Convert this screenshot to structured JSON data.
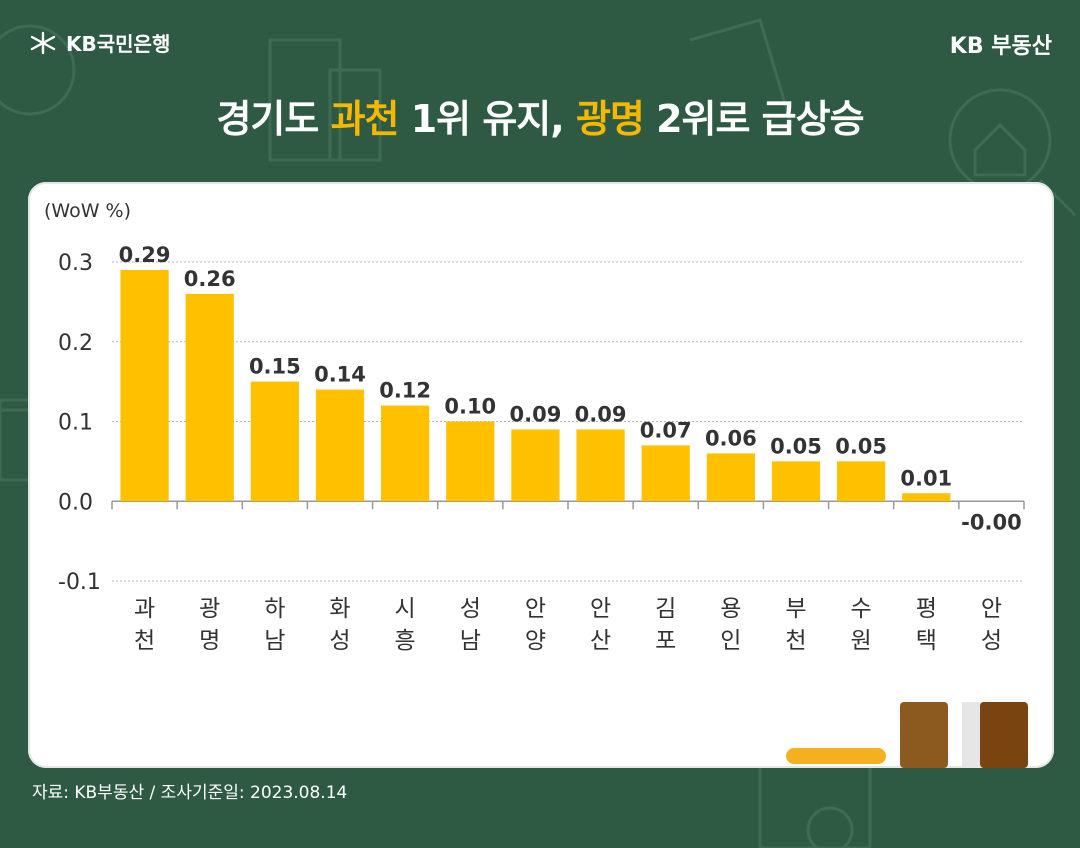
{
  "header": {
    "brand_left": "KB국민은행",
    "brand_right": "KB 부동산"
  },
  "title": {
    "part1": "경기도 ",
    "highlight1": "과천",
    "part2": " 1위 유지, ",
    "highlight2": "광명",
    "part3": " 2위로 급상승"
  },
  "footer": {
    "source": "자료: KB부동산 / 조사기준일: 2023.08.14"
  },
  "colors": {
    "background": "#2e5a44",
    "bar": "#ffc000",
    "highlight": "#f5b800"
  },
  "chart_data": {
    "type": "bar",
    "unit_label": "(WoW %)",
    "categories": [
      "과천",
      "광명",
      "하남",
      "화성",
      "시흥",
      "성남",
      "안양",
      "안산",
      "김포",
      "용인",
      "부천",
      "수원",
      "평택",
      "안성"
    ],
    "values": [
      0.29,
      0.26,
      0.15,
      0.14,
      0.12,
      0.1,
      0.09,
      0.09,
      0.07,
      0.06,
      0.05,
      0.05,
      0.01,
      -0.0
    ],
    "value_labels": [
      "0.29",
      "0.26",
      "0.15",
      "0.14",
      "0.12",
      "0.10",
      "0.09",
      "0.09",
      "0.07",
      "0.06",
      "0.05",
      "0.05",
      "0.01",
      "-0.00"
    ],
    "yticks": [
      "0.3",
      "0.2",
      "0.1",
      "0.0",
      "-0.1"
    ],
    "ylim": [
      -0.1,
      0.3
    ],
    "grid": true,
    "legend": false
  }
}
